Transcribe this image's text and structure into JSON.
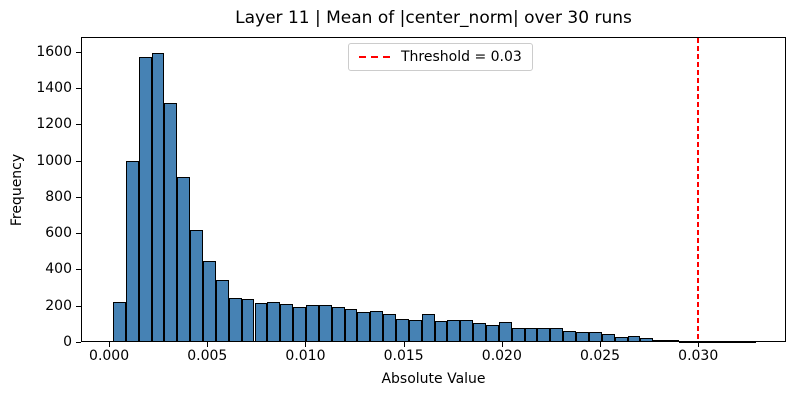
{
  "chart_data": {
    "type": "bar",
    "subtype": "histogram",
    "title": "Layer 11 | Mean of |center_norm| over 30 runs",
    "xlabel": "Absolute Value",
    "ylabel": "Frequency",
    "grid": false,
    "legend_position": "upper center",
    "bin_start": 0.0002,
    "bin_width": 0.000655,
    "values": [
      220,
      1000,
      1570,
      1595,
      1320,
      910,
      620,
      445,
      340,
      240,
      237,
      216,
      222,
      208,
      194,
      206,
      204,
      192,
      180,
      166,
      172,
      153,
      129,
      120,
      153,
      116,
      120,
      120,
      107,
      96,
      111,
      77,
      76,
      79,
      77,
      61,
      57,
      56,
      42,
      26,
      32,
      20,
      13,
      9,
      5,
      4,
      3,
      3,
      2,
      6
    ],
    "threshold_line": {
      "x": 0.03,
      "label": "Threshold = 0.03",
      "color": "#ff0000",
      "style": "dashed"
    },
    "xlim": [
      -0.00143,
      0.03447
    ],
    "ylim": [
      0,
      1677
    ],
    "x_tick_values": [
      0.0,
      0.005,
      0.01,
      0.015,
      0.02,
      0.025,
      0.03
    ],
    "x_tick_labels": [
      "0.000",
      "0.005",
      "0.010",
      "0.015",
      "0.020",
      "0.025",
      "0.030"
    ],
    "y_tick_values": [
      0,
      200,
      400,
      600,
      800,
      1000,
      1200,
      1400,
      1600
    ],
    "y_tick_labels": [
      "0",
      "200",
      "400",
      "600",
      "800",
      "1000",
      "1200",
      "1400",
      "1600"
    ],
    "bar_color": "#4682B4",
    "bar_edge_color": "#000000",
    "spine_color": "#000000",
    "legend_border_color": "#cccccc"
  }
}
